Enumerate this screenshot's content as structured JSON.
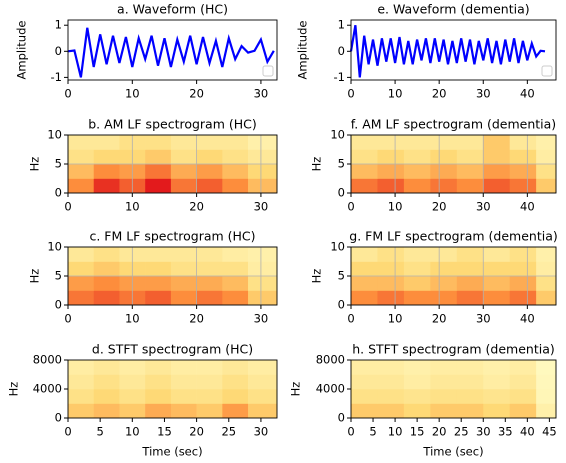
{
  "chart_data": [
    {
      "type": "line",
      "title": "a. Waveform (HC)",
      "ylabel": "Amplitude",
      "color": "#0000ff",
      "grid": false,
      "x": [
        0,
        1,
        2,
        3,
        4,
        5,
        6,
        7,
        8,
        9,
        10,
        11,
        12,
        13,
        14,
        15,
        16,
        17,
        18,
        19,
        20,
        21,
        22,
        23,
        24,
        25,
        26,
        27,
        28,
        29,
        30,
        31,
        32
      ],
      "values": [
        0,
        0.03,
        -1.0,
        0.9,
        -0.6,
        0.65,
        -0.5,
        0.6,
        -0.45,
        0.55,
        -0.6,
        0.5,
        -0.3,
        0.6,
        -0.55,
        0.5,
        -0.6,
        0.45,
        -0.4,
        0.6,
        -0.5,
        0.55,
        -0.45,
        0.4,
        -0.6,
        0.5,
        -0.3,
        0.2,
        -0.05,
        0.02,
        0.45,
        -0.4,
        0.02
      ],
      "xlim": [
        0,
        32.5
      ],
      "xticks": [
        0,
        10,
        20,
        30
      ],
      "ylim": [
        -1.1,
        1.2
      ],
      "yticks": [
        -1,
        0,
        1
      ]
    },
    {
      "type": "line",
      "title": "e. Waveform (dementia)",
      "ylabel": "Amplitude",
      "color": "#0000ff",
      "grid": false,
      "x": [
        0,
        1,
        2,
        3,
        4,
        5,
        6,
        7,
        8,
        9,
        10,
        11,
        12,
        13,
        14,
        15,
        16,
        17,
        18,
        19,
        20,
        21,
        22,
        23,
        24,
        25,
        26,
        27,
        28,
        29,
        30,
        31,
        32,
        33,
        34,
        35,
        36,
        37,
        38,
        39,
        40,
        41,
        42,
        43,
        44
      ],
      "values": [
        0,
        1.0,
        -1.0,
        0.6,
        -0.5,
        0.45,
        -0.55,
        0.5,
        -0.4,
        0.5,
        -0.45,
        0.55,
        -0.5,
        0.4,
        -0.5,
        0.45,
        -0.35,
        0.5,
        -0.45,
        0.5,
        -0.4,
        0.45,
        -0.5,
        0.4,
        -0.45,
        0.5,
        -0.4,
        0.45,
        -0.5,
        0.4,
        -0.35,
        0.5,
        -0.45,
        0.4,
        -0.5,
        0.45,
        -0.4,
        0.5,
        -0.45,
        0.4,
        -0.35,
        0.3,
        -0.2,
        0.02,
        0
      ],
      "xlim": [
        0,
        46.5
      ],
      "xticks": [
        0,
        10,
        20,
        30,
        40
      ],
      "ylim": [
        -1.1,
        1.2
      ],
      "yticks": [
        -1,
        0,
        1
      ]
    },
    {
      "type": "heatmap",
      "title": "b. AM LF spectrogram (HC)",
      "ylabel": "Hz",
      "colormap": "YlOrRd",
      "zlim": [
        0,
        1
      ],
      "grid": true,
      "x_edges": [
        0,
        4,
        8,
        12,
        16,
        20,
        24,
        28,
        32.5
      ],
      "y_edges": [
        0,
        2.5,
        5,
        7.5,
        10
      ],
      "z": [
        [
          0.5,
          0.7,
          0.6,
          0.75,
          0.55,
          0.6,
          0.5,
          0.35
        ],
        [
          0.35,
          0.5,
          0.45,
          0.55,
          0.4,
          0.45,
          0.35,
          0.25
        ],
        [
          0.2,
          0.25,
          0.25,
          0.3,
          0.2,
          0.25,
          0.2,
          0.15
        ],
        [
          0.15,
          0.15,
          0.2,
          0.2,
          0.15,
          0.15,
          0.15,
          0.1
        ]
      ],
      "xlim": [
        0,
        32.5
      ],
      "xticks": [
        0,
        10,
        20,
        30
      ],
      "ylim": [
        0,
        10
      ],
      "yticks": [
        0,
        5,
        10
      ]
    },
    {
      "type": "heatmap",
      "title": "f. AM LF spectrogram (dementia)",
      "ylabel": "Hz",
      "colormap": "YlOrRd",
      "zlim": [
        0,
        1
      ],
      "grid": true,
      "x_edges": [
        0,
        6,
        12,
        18,
        24,
        30,
        36,
        42,
        46.5
      ],
      "y_edges": [
        0,
        2.5,
        5,
        7.5,
        10
      ],
      "z": [
        [
          0.55,
          0.6,
          0.5,
          0.55,
          0.5,
          0.6,
          0.55,
          0.3
        ],
        [
          0.35,
          0.4,
          0.35,
          0.4,
          0.35,
          0.45,
          0.4,
          0.2
        ],
        [
          0.2,
          0.25,
          0.2,
          0.25,
          0.2,
          0.3,
          0.25,
          0.12
        ],
        [
          0.15,
          0.15,
          0.15,
          0.15,
          0.15,
          0.3,
          0.15,
          0.1
        ]
      ],
      "xlim": [
        0,
        46.5
      ],
      "xticks": [
        0,
        10,
        20,
        30,
        40
      ],
      "ylim": [
        0,
        10
      ],
      "yticks": [
        0,
        5,
        10
      ]
    },
    {
      "type": "heatmap",
      "title": "c. FM LF spectrogram (HC)",
      "ylabel": "Hz",
      "colormap": "YlOrRd",
      "zlim": [
        0,
        1
      ],
      "grid": true,
      "x_edges": [
        0,
        4,
        8,
        12,
        16,
        20,
        24,
        28,
        32.5
      ],
      "y_edges": [
        0,
        2.5,
        5,
        7.5,
        10
      ],
      "z": [
        [
          0.55,
          0.6,
          0.55,
          0.6,
          0.5,
          0.55,
          0.5,
          0.3
        ],
        [
          0.45,
          0.5,
          0.45,
          0.45,
          0.4,
          0.4,
          0.35,
          0.2
        ],
        [
          0.25,
          0.3,
          0.25,
          0.25,
          0.2,
          0.2,
          0.2,
          0.12
        ],
        [
          0.15,
          0.2,
          0.15,
          0.15,
          0.15,
          0.15,
          0.12,
          0.1
        ]
      ],
      "xlim": [
        0,
        32.5
      ],
      "xticks": [
        0,
        10,
        20,
        30
      ],
      "ylim": [
        0,
        10
      ],
      "yticks": [
        0,
        5,
        10
      ]
    },
    {
      "type": "heatmap",
      "title": "g. FM LF spectrogram (dementia)",
      "ylabel": "Hz",
      "colormap": "YlOrRd",
      "zlim": [
        0,
        1
      ],
      "grid": true,
      "x_edges": [
        0,
        6,
        12,
        18,
        24,
        30,
        36,
        42,
        46.5
      ],
      "y_edges": [
        0,
        2.5,
        5,
        7.5,
        10
      ],
      "z": [
        [
          0.5,
          0.55,
          0.5,
          0.5,
          0.55,
          0.5,
          0.55,
          0.3
        ],
        [
          0.35,
          0.35,
          0.3,
          0.35,
          0.4,
          0.35,
          0.4,
          0.2
        ],
        [
          0.25,
          0.25,
          0.2,
          0.25,
          0.25,
          0.25,
          0.25,
          0.12
        ],
        [
          0.15,
          0.2,
          0.15,
          0.15,
          0.2,
          0.15,
          0.2,
          0.1
        ]
      ],
      "xlim": [
        0,
        46.5
      ],
      "xticks": [
        0,
        10,
        20,
        30,
        40
      ],
      "ylim": [
        0,
        10
      ],
      "yticks": [
        0,
        5,
        10
      ]
    },
    {
      "type": "heatmap",
      "title": "d. STFT spectrogram (HC)",
      "ylabel": "Hz",
      "xlabel": "Time (sec)",
      "colormap": "YlOrRd",
      "zlim": [
        0,
        1
      ],
      "grid": false,
      "x_edges": [
        0,
        4,
        8,
        12,
        16,
        20,
        24,
        28,
        32.5
      ],
      "y_edges": [
        0,
        2000,
        4000,
        6000,
        8000
      ],
      "z": [
        [
          0.3,
          0.35,
          0.3,
          0.4,
          0.35,
          0.3,
          0.45,
          0.3
        ],
        [
          0.2,
          0.25,
          0.2,
          0.25,
          0.2,
          0.2,
          0.25,
          0.2
        ],
        [
          0.15,
          0.2,
          0.15,
          0.2,
          0.15,
          0.15,
          0.2,
          0.15
        ],
        [
          0.12,
          0.15,
          0.12,
          0.15,
          0.12,
          0.12,
          0.15,
          0.12
        ]
      ],
      "xlim": [
        0,
        32.5
      ],
      "xticks": [
        0,
        5,
        10,
        15,
        20,
        25,
        30
      ],
      "ylim": [
        0,
        8000
      ],
      "yticks": [
        0,
        4000,
        8000
      ]
    },
    {
      "type": "heatmap",
      "title": "h. STFT spectrogram (dementia)",
      "ylabel": "Hz",
      "xlabel": "Time (sec)",
      "colormap": "YlOrRd",
      "zlim": [
        0,
        1
      ],
      "grid": false,
      "x_edges": [
        0,
        6,
        12,
        18,
        24,
        30,
        36,
        42,
        46.5
      ],
      "y_edges": [
        0,
        2000,
        4000,
        6000,
        8000
      ],
      "z": [
        [
          0.3,
          0.3,
          0.25,
          0.3,
          0.3,
          0.25,
          0.3,
          0.1
        ],
        [
          0.2,
          0.2,
          0.18,
          0.2,
          0.2,
          0.18,
          0.2,
          0.06
        ],
        [
          0.15,
          0.15,
          0.12,
          0.15,
          0.15,
          0.12,
          0.15,
          0.05
        ],
        [
          0.12,
          0.12,
          0.1,
          0.12,
          0.12,
          0.1,
          0.12,
          0.04
        ]
      ],
      "xlim": [
        0,
        46.5
      ],
      "xticks": [
        0,
        5,
        10,
        15,
        20,
        25,
        30,
        35,
        40,
        45
      ],
      "ylim": [
        0,
        8000
      ],
      "yticks": [
        0,
        4000,
        8000
      ]
    }
  ]
}
